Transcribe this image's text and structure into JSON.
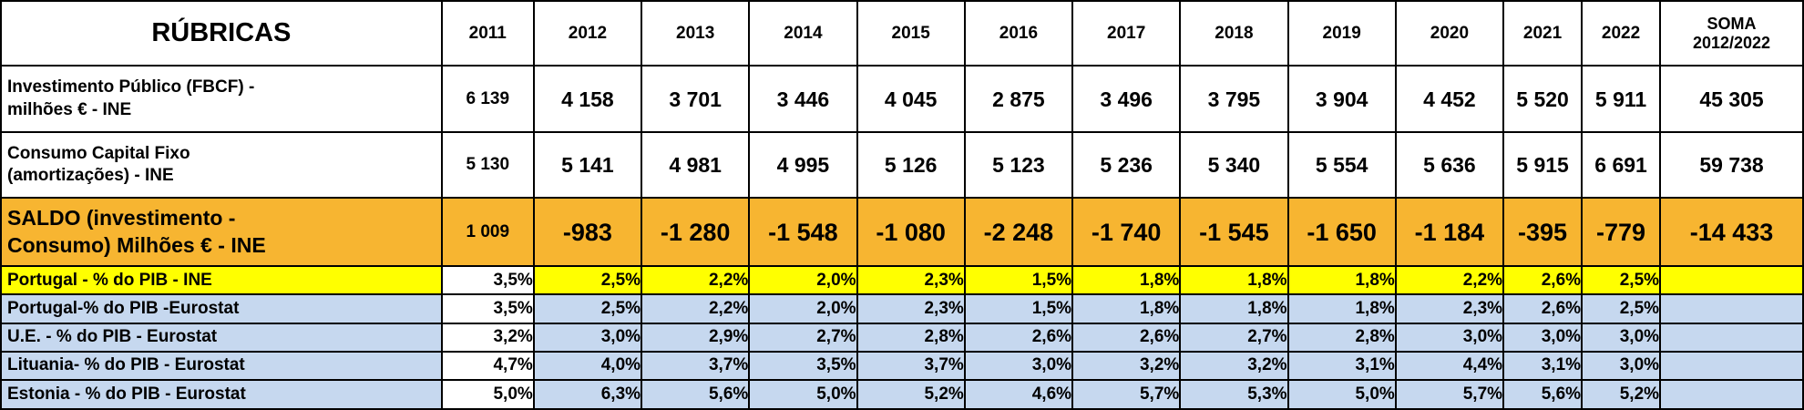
{
  "table": {
    "header": {
      "label": "RÚBRICAS",
      "years": [
        "2011",
        "2012",
        "2013",
        "2014",
        "2015",
        "2016",
        "2017",
        "2018",
        "2019",
        "2020",
        "2021",
        "2022"
      ],
      "soma_line1": "SOMA",
      "soma_line2": "2012/2022"
    },
    "rows": {
      "investimento": {
        "label_line1": "Investimento Público (FBCF) -",
        "label_line2": "milhões  € - INE",
        "values": [
          "6 139",
          "4 158",
          "3 701",
          "3 446",
          "4 045",
          "2 875",
          "3 496",
          "3 795",
          "3 904",
          "4 452",
          "5 520",
          "5 911"
        ],
        "soma": "45 305"
      },
      "consumo": {
        "label_line1": "Consumo Capital Fixo",
        "label_line2": "(amortizações) - INE",
        "values": [
          "5 130",
          "5 141",
          "4 981",
          "4 995",
          "5 126",
          "5 123",
          "5 236",
          "5 340",
          "5 554",
          "5 636",
          "5 915",
          "6 691"
        ],
        "soma": "59 738"
      },
      "saldo": {
        "label_line1": "SALDO (investimento -",
        "label_line2": "Consumo) Milhões € - INE",
        "values": [
          "1 009",
          "-983",
          "-1 280",
          "-1 548",
          "-1 080",
          "-2 248",
          "-1 740",
          "-1 545",
          "-1 650",
          "-1 184",
          "-395",
          "-779"
        ],
        "soma": "-14 433"
      },
      "portugal_ine": {
        "label": "Portugal - % do PIB - INE",
        "values": [
          "3,5%",
          "2,5%",
          "2,2%",
          "2,0%",
          "2,3%",
          "1,5%",
          "1,8%",
          "1,8%",
          "1,8%",
          "2,2%",
          "2,6%",
          "2,5%"
        ],
        "soma": ""
      },
      "portugal_eurostat": {
        "label": "Portugal-% do PIB -Eurostat",
        "values": [
          "3,5%",
          "2,5%",
          "2,2%",
          "2,0%",
          "2,3%",
          "1,5%",
          "1,8%",
          "1,8%",
          "1,8%",
          "2,3%",
          "2,6%",
          "2,5%"
        ],
        "soma": ""
      },
      "ue_eurostat": {
        "label": "U.E. - % do PIB - Eurostat",
        "values": [
          "3,2%",
          "3,0%",
          "2,9%",
          "2,7%",
          "2,8%",
          "2,6%",
          "2,6%",
          "2,7%",
          "2,8%",
          "3,0%",
          "3,0%",
          "3,0%"
        ],
        "soma": ""
      },
      "lituania_eurostat": {
        "label": "Lituania- % do PIB - Eurostat",
        "values": [
          "4,7%",
          "4,0%",
          "3,7%",
          "3,5%",
          "3,7%",
          "3,0%",
          "3,2%",
          "3,2%",
          "3,1%",
          "4,4%",
          "3,1%",
          "3,0%"
        ],
        "soma": ""
      },
      "estonia_eurostat": {
        "label": "Estonia -  % do PIB - Eurostat",
        "values": [
          "5,0%",
          "6,3%",
          "5,6%",
          "5,0%",
          "5,2%",
          "4,6%",
          "5,7%",
          "5,3%",
          "5,0%",
          "5,7%",
          "5,6%",
          "5,2%"
        ],
        "soma": ""
      }
    }
  },
  "colors": {
    "saldo_row": "#f7b531",
    "portugal_ine_row": "#ffff00",
    "eurostat_rows": "#c6d8ef"
  },
  "chart_data": {
    "type": "table",
    "columns": [
      "RÚBRICAS",
      "2011",
      "2012",
      "2013",
      "2014",
      "2015",
      "2016",
      "2017",
      "2018",
      "2019",
      "2020",
      "2021",
      "2022",
      "SOMA 2012/2022"
    ],
    "rows": [
      [
        "Investimento Público (FBCF) - milhões  € - INE",
        6139,
        4158,
        3701,
        3446,
        4045,
        2875,
        3496,
        3795,
        3904,
        4452,
        5520,
        5911,
        45305
      ],
      [
        "Consumo Capital Fixo (amortizações) - INE",
        5130,
        5141,
        4981,
        4995,
        5126,
        5123,
        5236,
        5340,
        5554,
        5636,
        5915,
        6691,
        59738
      ],
      [
        "SALDO (investimento - Consumo) Milhões € - INE",
        1009,
        -983,
        -1280,
        -1548,
        -1080,
        -2248,
        -1740,
        -1545,
        -1650,
        -1184,
        -395,
        -779,
        -14433
      ],
      [
        "Portugal - % do PIB - INE",
        3.5,
        2.5,
        2.2,
        2.0,
        2.3,
        1.5,
        1.8,
        1.8,
        1.8,
        2.2,
        2.6,
        2.5,
        null
      ],
      [
        "Portugal-% do PIB -Eurostat",
        3.5,
        2.5,
        2.2,
        2.0,
        2.3,
        1.5,
        1.8,
        1.8,
        1.8,
        2.3,
        2.6,
        2.5,
        null
      ],
      [
        "U.E. - % do PIB - Eurostat",
        3.2,
        3.0,
        2.9,
        2.7,
        2.8,
        2.6,
        2.6,
        2.7,
        2.8,
        3.0,
        3.0,
        3.0,
        null
      ],
      [
        "Lituania- % do PIB - Eurostat",
        4.7,
        4.0,
        3.7,
        3.5,
        3.7,
        3.0,
        3.2,
        3.2,
        3.1,
        4.4,
        3.1,
        3.0,
        null
      ],
      [
        "Estonia -  % do PIB - Eurostat",
        5.0,
        6.3,
        5.6,
        5.0,
        5.2,
        4.6,
        5.7,
        5.3,
        5.0,
        5.7,
        5.6,
        5.2,
        null
      ]
    ]
  }
}
